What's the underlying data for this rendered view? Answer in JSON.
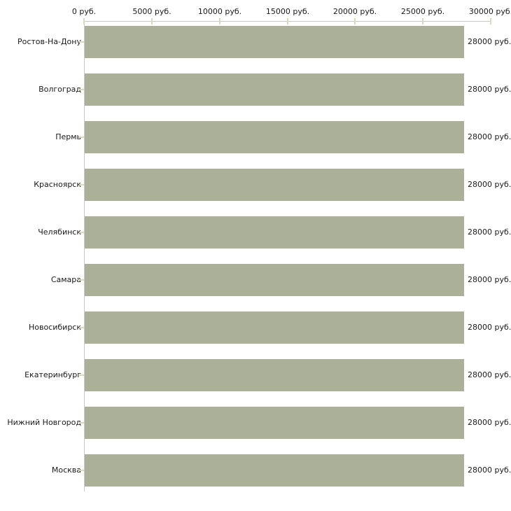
{
  "chart_data": {
    "type": "bar",
    "orientation": "horizontal",
    "title": "",
    "xlabel": "",
    "ylabel": "",
    "unit": "руб.",
    "categories": [
      "Ростов-На-Дону",
      "Волгоград",
      "Пермь",
      "Красноярск",
      "Челябинск",
      "Самара",
      "Новосибирск",
      "Екатеринбург",
      "Нижний Новгород",
      "Москва"
    ],
    "values": [
      28000,
      28000,
      28000,
      28000,
      28000,
      28000,
      28000,
      28000,
      28000,
      28000
    ],
    "value_labels": [
      "28000 руб.",
      "28000 руб.",
      "28000 руб.",
      "28000 руб.",
      "28000 руб.",
      "28000 руб.",
      "28000 руб.",
      "28000 руб.",
      "28000 руб.",
      "28000 руб."
    ],
    "x_axis": {
      "position": "top",
      "min": 0,
      "max": 30000,
      "tick_values": [
        0,
        5000,
        10000,
        15000,
        20000,
        25000,
        30000
      ],
      "tick_labels": [
        "0 руб.",
        "5000 руб.",
        "10000 руб.",
        "15000 руб.",
        "20000 руб.",
        "25000 руб.",
        "30000 руб."
      ]
    },
    "grid": false,
    "legend": false,
    "colors": {
      "bar": "#abb198",
      "axis_line": "#c7c7c7",
      "tick_mark": "#d8d9bf",
      "text": "#1a1a1a",
      "background": "#ffffff"
    }
  }
}
